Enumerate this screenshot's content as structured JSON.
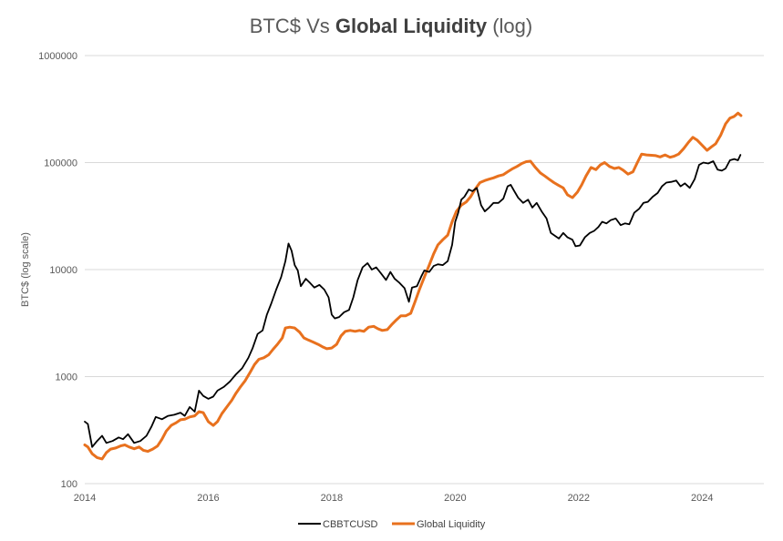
{
  "chart_data": {
    "type": "line",
    "title": {
      "prefix": "BTC$ Vs ",
      "bold": "Global Liquidity",
      "suffix": " (log)"
    },
    "xlabel": "",
    "ylabel": "BTC$ (log scale)",
    "yscale": "log",
    "ylim": [
      100,
      1000000
    ],
    "xlim": [
      2014,
      2025
    ],
    "x_ticks": [
      "2014",
      "2016",
      "2018",
      "2020",
      "2022",
      "2024"
    ],
    "y_ticks": [
      "100",
      "1000",
      "10000",
      "100000",
      "1000000"
    ],
    "grid": "horizontal",
    "legend": "bottom-center",
    "series": [
      {
        "name": "CBBTCUSD",
        "color": "#000000",
        "points": [
          [
            2014.0,
            380
          ],
          [
            2014.05,
            360
          ],
          [
            2014.12,
            220
          ],
          [
            2014.2,
            250
          ],
          [
            2014.28,
            280
          ],
          [
            2014.35,
            240
          ],
          [
            2014.45,
            250
          ],
          [
            2014.55,
            270
          ],
          [
            2014.62,
            260
          ],
          [
            2014.7,
            290
          ],
          [
            2014.8,
            240
          ],
          [
            2014.9,
            250
          ],
          [
            2015.0,
            280
          ],
          [
            2015.08,
            340
          ],
          [
            2015.15,
            420
          ],
          [
            2015.25,
            400
          ],
          [
            2015.35,
            430
          ],
          [
            2015.45,
            440
          ],
          [
            2015.55,
            460
          ],
          [
            2015.62,
            430
          ],
          [
            2015.7,
            520
          ],
          [
            2015.78,
            470
          ],
          [
            2015.85,
            740
          ],
          [
            2015.92,
            660
          ],
          [
            2016.0,
            620
          ],
          [
            2016.08,
            650
          ],
          [
            2016.15,
            740
          ],
          [
            2016.25,
            800
          ],
          [
            2016.35,
            900
          ],
          [
            2016.45,
            1050
          ],
          [
            2016.55,
            1200
          ],
          [
            2016.65,
            1500
          ],
          [
            2016.72,
            1850
          ],
          [
            2016.8,
            2500
          ],
          [
            2016.88,
            2700
          ],
          [
            2016.95,
            3800
          ],
          [
            2017.02,
            4800
          ],
          [
            2017.1,
            6500
          ],
          [
            2017.18,
            8500
          ],
          [
            2017.25,
            12000
          ],
          [
            2017.3,
            17500
          ],
          [
            2017.35,
            15000
          ],
          [
            2017.4,
            11000
          ],
          [
            2017.45,
            9800
          ],
          [
            2017.5,
            7000
          ],
          [
            2017.58,
            8200
          ],
          [
            2017.65,
            7500
          ],
          [
            2017.72,
            6800
          ],
          [
            2017.8,
            7200
          ],
          [
            2017.88,
            6500
          ],
          [
            2017.95,
            5500
          ],
          [
            2018.0,
            3800
          ],
          [
            2018.05,
            3500
          ],
          [
            2018.12,
            3600
          ],
          [
            2018.2,
            4000
          ],
          [
            2018.28,
            4200
          ],
          [
            2018.35,
            5500
          ],
          [
            2018.42,
            8000
          ],
          [
            2018.5,
            10500
          ],
          [
            2018.58,
            11500
          ],
          [
            2018.65,
            10000
          ],
          [
            2018.72,
            10500
          ],
          [
            2018.8,
            9200
          ],
          [
            2018.88,
            8000
          ],
          [
            2018.95,
            9500
          ],
          [
            2019.02,
            8200
          ],
          [
            2019.1,
            7500
          ],
          [
            2019.18,
            6700
          ],
          [
            2019.25,
            5000
          ],
          [
            2019.3,
            6800
          ],
          [
            2019.38,
            7000
          ],
          [
            2019.45,
            8600
          ],
          [
            2019.5,
            9800
          ],
          [
            2019.58,
            9500
          ],
          [
            2019.65,
            10800
          ],
          [
            2019.72,
            11200
          ],
          [
            2019.8,
            11000
          ],
          [
            2019.88,
            12000
          ],
          [
            2019.95,
            17000
          ],
          [
            2020.0,
            28000
          ],
          [
            2020.05,
            34000
          ],
          [
            2020.1,
            45000
          ],
          [
            2020.15,
            48000
          ],
          [
            2020.22,
            56000
          ],
          [
            2020.28,
            54000
          ],
          [
            2020.35,
            58000
          ],
          [
            2020.42,
            40000
          ],
          [
            2020.48,
            35000
          ],
          [
            2020.55,
            38000
          ],
          [
            2020.62,
            42000
          ],
          [
            2020.7,
            42000
          ],
          [
            2020.78,
            46000
          ],
          [
            2020.85,
            60000
          ],
          [
            2020.9,
            62000
          ],
          [
            2020.95,
            55000
          ],
          [
            2021.02,
            47000
          ],
          [
            2021.1,
            42000
          ],
          [
            2021.18,
            45000
          ],
          [
            2021.25,
            38000
          ],
          [
            2021.32,
            42000
          ],
          [
            2021.4,
            35000
          ],
          [
            2021.48,
            30000
          ],
          [
            2021.55,
            22000
          ],
          [
            2021.6,
            21000
          ],
          [
            2021.68,
            19500
          ],
          [
            2021.75,
            22000
          ],
          [
            2021.82,
            20000
          ],
          [
            2021.9,
            19000
          ],
          [
            2021.95,
            16500
          ],
          [
            2022.02,
            16800
          ],
          [
            2022.1,
            20000
          ],
          [
            2022.18,
            22000
          ],
          [
            2022.25,
            23000
          ],
          [
            2022.32,
            25000
          ],
          [
            2022.38,
            28000
          ],
          [
            2022.45,
            27000
          ],
          [
            2022.52,
            29000
          ],
          [
            2022.6,
            30000
          ],
          [
            2022.68,
            26000
          ],
          [
            2022.75,
            27000
          ],
          [
            2022.82,
            26500
          ],
          [
            2022.9,
            34000
          ],
          [
            2022.98,
            37000
          ],
          [
            2023.05,
            42000
          ],
          [
            2023.12,
            43000
          ],
          [
            2023.2,
            48000
          ],
          [
            2023.28,
            52000
          ],
          [
            2023.35,
            60000
          ],
          [
            2023.42,
            65000
          ],
          [
            2023.5,
            66000
          ],
          [
            2023.58,
            68000
          ],
          [
            2023.65,
            60000
          ],
          [
            2023.72,
            64000
          ],
          [
            2023.8,
            58000
          ],
          [
            2023.88,
            70000
          ],
          [
            2023.95,
            95000
          ],
          [
            2024.02,
            100000
          ],
          [
            2024.1,
            98000
          ],
          [
            2024.18,
            103000
          ],
          [
            2024.25,
            86000
          ],
          [
            2024.32,
            84000
          ],
          [
            2024.38,
            88000
          ],
          [
            2024.45,
            105000
          ],
          [
            2024.52,
            108000
          ],
          [
            2024.58,
            105000
          ],
          [
            2024.62,
            118000
          ]
        ]
      },
      {
        "name": "Global Liquidity",
        "color": "#E8711E",
        "points": [
          [
            2014.0,
            230
          ],
          [
            2014.05,
            220
          ],
          [
            2014.12,
            190
          ],
          [
            2014.2,
            175
          ],
          [
            2014.28,
            170
          ],
          [
            2014.35,
            195
          ],
          [
            2014.42,
            210
          ],
          [
            2014.5,
            215
          ],
          [
            2014.58,
            225
          ],
          [
            2014.65,
            230
          ],
          [
            2014.72,
            220
          ],
          [
            2014.8,
            212
          ],
          [
            2014.88,
            220
          ],
          [
            2014.95,
            205
          ],
          [
            2015.02,
            200
          ],
          [
            2015.1,
            210
          ],
          [
            2015.18,
            225
          ],
          [
            2015.25,
            260
          ],
          [
            2015.32,
            310
          ],
          [
            2015.4,
            350
          ],
          [
            2015.48,
            370
          ],
          [
            2015.55,
            395
          ],
          [
            2015.62,
            400
          ],
          [
            2015.7,
            420
          ],
          [
            2015.78,
            430
          ],
          [
            2015.85,
            470
          ],
          [
            2015.92,
            460
          ],
          [
            2016.0,
            380
          ],
          [
            2016.08,
            350
          ],
          [
            2016.15,
            380
          ],
          [
            2016.22,
            450
          ],
          [
            2016.3,
            520
          ],
          [
            2016.38,
            600
          ],
          [
            2016.45,
            700
          ],
          [
            2016.52,
            800
          ],
          [
            2016.6,
            920
          ],
          [
            2016.68,
            1100
          ],
          [
            2016.75,
            1300
          ],
          [
            2016.82,
            1450
          ],
          [
            2016.9,
            1500
          ],
          [
            2016.98,
            1600
          ],
          [
            2017.05,
            1800
          ],
          [
            2017.12,
            2000
          ],
          [
            2017.2,
            2300
          ],
          [
            2017.25,
            2850
          ],
          [
            2017.32,
            2900
          ],
          [
            2017.4,
            2850
          ],
          [
            2017.48,
            2600
          ],
          [
            2017.55,
            2300
          ],
          [
            2017.62,
            2200
          ],
          [
            2017.7,
            2100
          ],
          [
            2017.78,
            2000
          ],
          [
            2017.85,
            1900
          ],
          [
            2017.92,
            1820
          ],
          [
            2018.0,
            1850
          ],
          [
            2018.08,
            2000
          ],
          [
            2018.15,
            2400
          ],
          [
            2018.22,
            2650
          ],
          [
            2018.3,
            2700
          ],
          [
            2018.38,
            2650
          ],
          [
            2018.45,
            2700
          ],
          [
            2018.52,
            2650
          ],
          [
            2018.6,
            2900
          ],
          [
            2018.68,
            2950
          ],
          [
            2018.75,
            2800
          ],
          [
            2018.82,
            2700
          ],
          [
            2018.9,
            2750
          ],
          [
            2018.98,
            3100
          ],
          [
            2019.05,
            3400
          ],
          [
            2019.12,
            3700
          ],
          [
            2019.2,
            3700
          ],
          [
            2019.28,
            3900
          ],
          [
            2019.35,
            5000
          ],
          [
            2019.42,
            6500
          ],
          [
            2019.5,
            8500
          ],
          [
            2019.58,
            11000
          ],
          [
            2019.65,
            14000
          ],
          [
            2019.72,
            17000
          ],
          [
            2019.8,
            19000
          ],
          [
            2019.88,
            21000
          ],
          [
            2019.95,
            28000
          ],
          [
            2020.02,
            35000
          ],
          [
            2020.1,
            40000
          ],
          [
            2020.18,
            43000
          ],
          [
            2020.25,
            48000
          ],
          [
            2020.32,
            56000
          ],
          [
            2020.4,
            65000
          ],
          [
            2020.48,
            68000
          ],
          [
            2020.55,
            70000
          ],
          [
            2020.62,
            72000
          ],
          [
            2020.7,
            75000
          ],
          [
            2020.78,
            77000
          ],
          [
            2020.85,
            82000
          ],
          [
            2020.92,
            87000
          ],
          [
            2021.0,
            92000
          ],
          [
            2021.08,
            98000
          ],
          [
            2021.15,
            102000
          ],
          [
            2021.22,
            103000
          ],
          [
            2021.3,
            90000
          ],
          [
            2021.38,
            80000
          ],
          [
            2021.45,
            75000
          ],
          [
            2021.52,
            70000
          ],
          [
            2021.6,
            65000
          ],
          [
            2021.68,
            61000
          ],
          [
            2021.75,
            58000
          ],
          [
            2021.82,
            50000
          ],
          [
            2021.9,
            47000
          ],
          [
            2021.98,
            53000
          ],
          [
            2022.05,
            62000
          ],
          [
            2022.12,
            75000
          ],
          [
            2022.2,
            90000
          ],
          [
            2022.28,
            86000
          ],
          [
            2022.35,
            95000
          ],
          [
            2022.42,
            100000
          ],
          [
            2022.5,
            92000
          ],
          [
            2022.58,
            88000
          ],
          [
            2022.65,
            90000
          ],
          [
            2022.72,
            85000
          ],
          [
            2022.8,
            78000
          ],
          [
            2022.88,
            82000
          ],
          [
            2022.95,
            100000
          ],
          [
            2023.02,
            120000
          ],
          [
            2023.1,
            118000
          ],
          [
            2023.18,
            117000
          ],
          [
            2023.25,
            116000
          ],
          [
            2023.32,
            113000
          ],
          [
            2023.4,
            118000
          ],
          [
            2023.48,
            112000
          ],
          [
            2023.55,
            115000
          ],
          [
            2023.62,
            120000
          ],
          [
            2023.7,
            135000
          ],
          [
            2023.78,
            155000
          ],
          [
            2023.85,
            172000
          ],
          [
            2023.92,
            162000
          ],
          [
            2024.0,
            145000
          ],
          [
            2024.08,
            130000
          ],
          [
            2024.15,
            140000
          ],
          [
            2024.22,
            150000
          ],
          [
            2024.3,
            180000
          ],
          [
            2024.38,
            230000
          ],
          [
            2024.45,
            260000
          ],
          [
            2024.52,
            270000
          ],
          [
            2024.58,
            290000
          ],
          [
            2024.63,
            275000
          ]
        ]
      }
    ]
  }
}
